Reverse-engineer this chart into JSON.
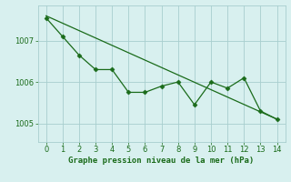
{
  "line1_x": [
    0,
    1,
    2,
    3,
    4,
    5,
    6,
    7,
    8,
    9,
    10,
    11,
    12,
    13,
    14
  ],
  "line1_y": [
    1007.55,
    1007.1,
    1006.65,
    1006.3,
    1006.3,
    1005.75,
    1005.75,
    1005.9,
    1006.0,
    1005.45,
    1006.0,
    1005.85,
    1006.1,
    1005.3,
    1005.1
  ],
  "line2_x": [
    0,
    14
  ],
  "line2_y": [
    1007.6,
    1005.1
  ],
  "line_color": "#1a6b1a",
  "bg_color": "#d8f0ef",
  "grid_color": "#a8cece",
  "xlabel": "Graphe pression niveau de la mer (hPa)",
  "ylim": [
    1004.55,
    1007.85
  ],
  "xlim": [
    -0.5,
    14.5
  ],
  "yticks": [
    1005,
    1006,
    1007
  ],
  "xticks": [
    0,
    1,
    2,
    3,
    4,
    5,
    6,
    7,
    8,
    9,
    10,
    11,
    12,
    13,
    14
  ]
}
